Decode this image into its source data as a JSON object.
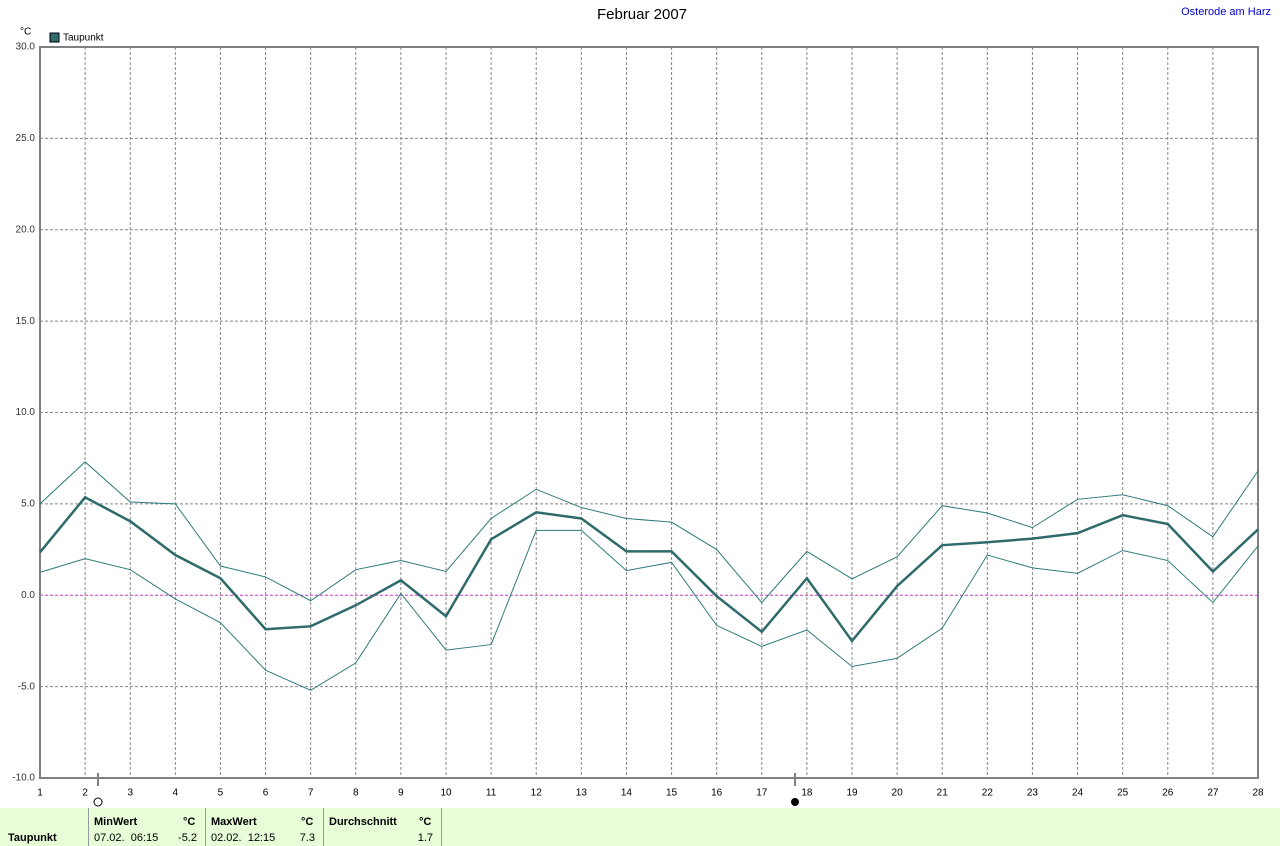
{
  "chart_data": {
    "type": "line",
    "title": "Februar 2007",
    "subtitle": "Osterode am Harz",
    "y_label": "°C",
    "x": [
      1,
      2,
      3,
      4,
      5,
      6,
      7,
      8,
      9,
      10,
      11,
      12,
      13,
      14,
      15,
      16,
      17,
      18,
      19,
      20,
      21,
      22,
      23,
      24,
      25,
      26,
      27,
      28
    ],
    "series": [
      {
        "name": "Taupunkt",
        "color": "#2f6b6b",
        "values": [
          2.35,
          5.36,
          4.05,
          2.2,
          0.93,
          -1.86,
          -1.7,
          -0.55,
          0.82,
          -1.15,
          3.06,
          4.54,
          4.2,
          2.4,
          2.4,
          -0.05,
          -2.0,
          0.93,
          -2.5,
          0.5,
          2.74,
          2.9,
          3.1,
          3.4,
          4.38,
          3.9,
          1.3,
          3.6
        ]
      },
      {
        "color": "#2f7b7b",
        "values": [
          5.0,
          7.3,
          5.1,
          5.0,
          1.6,
          1.0,
          -0.3,
          1.4,
          1.9,
          1.3,
          4.2,
          5.8,
          4.8,
          4.2,
          4.0,
          2.5,
          -0.4,
          2.4,
          0.9,
          2.1,
          4.9,
          4.5,
          3.7,
          5.25,
          5.5,
          4.9,
          3.2,
          6.8
        ]
      },
      {
        "color": "#2f7b7b",
        "values": [
          1.25,
          2.0,
          1.4,
          -0.2,
          -1.5,
          -4.1,
          -5.2,
          -3.7,
          0.1,
          -3.0,
          -2.7,
          3.55,
          3.55,
          1.35,
          1.8,
          -1.65,
          -2.8,
          -1.9,
          -3.9,
          -3.45,
          -1.8,
          2.2,
          1.5,
          1.2,
          2.45,
          1.9,
          -0.4,
          2.7
        ]
      }
    ],
    "xlim": [
      1,
      28
    ],
    "xticks": [
      1,
      2,
      3,
      4,
      5,
      6,
      7,
      8,
      9,
      10,
      11,
      12,
      13,
      14,
      15,
      16,
      17,
      18,
      19,
      20,
      21,
      22,
      23,
      24,
      25,
      26,
      27,
      28
    ],
    "ylim": [
      -10,
      30
    ],
    "yticks": [
      {
        "value": -10,
        "label": "-10.0"
      },
      {
        "value": -5,
        "label": "-5.0"
      },
      {
        "value": 0,
        "label": "0.0"
      },
      {
        "value": 5,
        "label": "5.0"
      },
      {
        "value": 10,
        "label": "10.0"
      },
      {
        "value": 15,
        "label": "15.0"
      },
      {
        "value": 20,
        "label": "20.0"
      },
      {
        "value": 25,
        "label": "25.0"
      },
      {
        "value": 30,
        "label": "30.0"
      }
    ],
    "grid": true,
    "legend": "top-left",
    "zero_line_color": "#cc33cc"
  },
  "summary": {
    "row_label": "Taupunkt",
    "columns": [
      {
        "header": "MinWert",
        "unit": "°C",
        "time": "07.02.  06:15",
        "value": "-5.2"
      },
      {
        "header": "MaxWert",
        "unit": "°C",
        "time": "02.02.  12:15",
        "value": "7.3"
      },
      {
        "header": "Durchschnitt",
        "unit": "°C",
        "time": "",
        "value": "1.7"
      }
    ]
  }
}
